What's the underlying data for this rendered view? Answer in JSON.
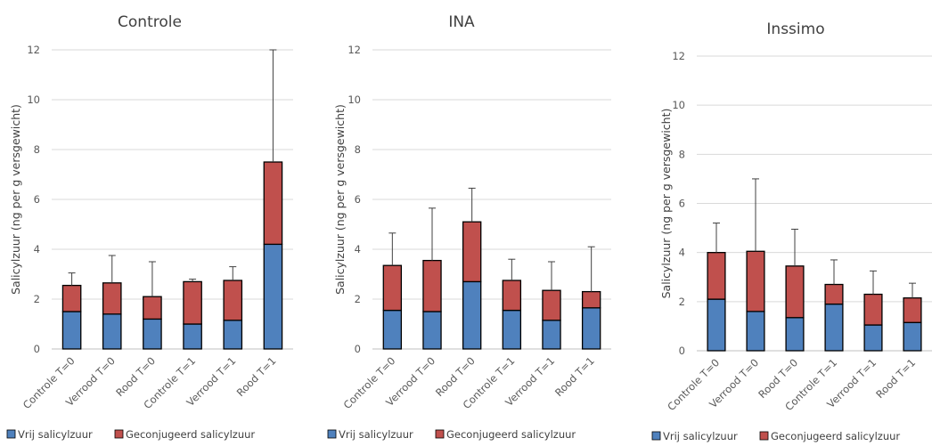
{
  "colors": {
    "free": "#4f81bd",
    "conjugated": "#c0504d",
    "grid": "#d9d9d9",
    "axis": "#bfbfbf",
    "error": "#404040",
    "outline": "#000000"
  },
  "legend": {
    "free_label": "Vrij salicylzuur",
    "conjugated_label": "Geconjugeerd salicylzuur",
    "position": "bottom-left"
  },
  "chart_data": [
    {
      "type": "bar",
      "stacked": true,
      "title": "Controle",
      "xlabel": "",
      "ylabel": "Salicylzuur (ng per g versgewicht)",
      "ylim": [
        0,
        12
      ],
      "yticks": [
        "0",
        "2",
        "4",
        "6",
        "8",
        "10",
        "12"
      ],
      "grid": true,
      "categories": [
        "Controle T=0",
        "Verrood T=0",
        "Rood T=0",
        "Controle T=1",
        "Verrood T=1",
        "Rood T=1"
      ],
      "series": [
        {
          "name": "Vrij salicylzuur",
          "values": [
            1.5,
            1.4,
            1.2,
            1.0,
            1.15,
            4.2
          ]
        },
        {
          "name": "Geconjugeerd salicylzuur",
          "values": [
            1.05,
            1.25,
            0.9,
            1.7,
            1.6,
            3.3
          ]
        }
      ],
      "error_top": [
        3.05,
        3.75,
        3.5,
        2.8,
        3.3,
        12.0
      ]
    },
    {
      "type": "bar",
      "stacked": true,
      "title": "INA",
      "xlabel": "",
      "ylabel": "Salicylzuur (ng per g versgewicht)",
      "ylim": [
        0,
        12
      ],
      "yticks": [
        "0",
        "2",
        "4",
        "6",
        "8",
        "10",
        "12"
      ],
      "grid": true,
      "categories": [
        "Controle T=0",
        "Verrood T=0",
        "Rood T=0",
        "Controle T=1",
        "Verrood T=1",
        "Rood T=1"
      ],
      "series": [
        {
          "name": "Vrij salicylzuur",
          "values": [
            1.55,
            1.5,
            2.7,
            1.55,
            1.15,
            1.65
          ]
        },
        {
          "name": "Geconjugeerd salicylzuur",
          "values": [
            1.8,
            2.05,
            2.4,
            1.2,
            1.2,
            0.65
          ]
        }
      ],
      "error_top": [
        4.65,
        5.65,
        6.45,
        3.6,
        3.5,
        4.1
      ]
    },
    {
      "type": "bar",
      "stacked": true,
      "title": "Inssimo",
      "xlabel": "",
      "ylabel": "Salicylzuur (ng per g versgewicht)",
      "ylim": [
        0,
        12
      ],
      "yticks": [
        "0",
        "2",
        "4",
        "6",
        "8",
        "10",
        "12"
      ],
      "grid": true,
      "categories": [
        "Controle T=0",
        "Verrood T=0",
        "Rood T=0",
        "Controle T=1",
        "Verrood T=1",
        "Rood T=1"
      ],
      "series": [
        {
          "name": "Vrij salicylzuur",
          "values": [
            2.1,
            1.6,
            1.35,
            1.9,
            1.05,
            1.15
          ]
        },
        {
          "name": "Geconjugeerd salicylzuur",
          "values": [
            1.9,
            2.45,
            2.1,
            0.8,
            1.25,
            1.0
          ]
        }
      ],
      "error_top": [
        5.2,
        7.0,
        4.95,
        3.7,
        3.25,
        2.75
      ]
    }
  ]
}
